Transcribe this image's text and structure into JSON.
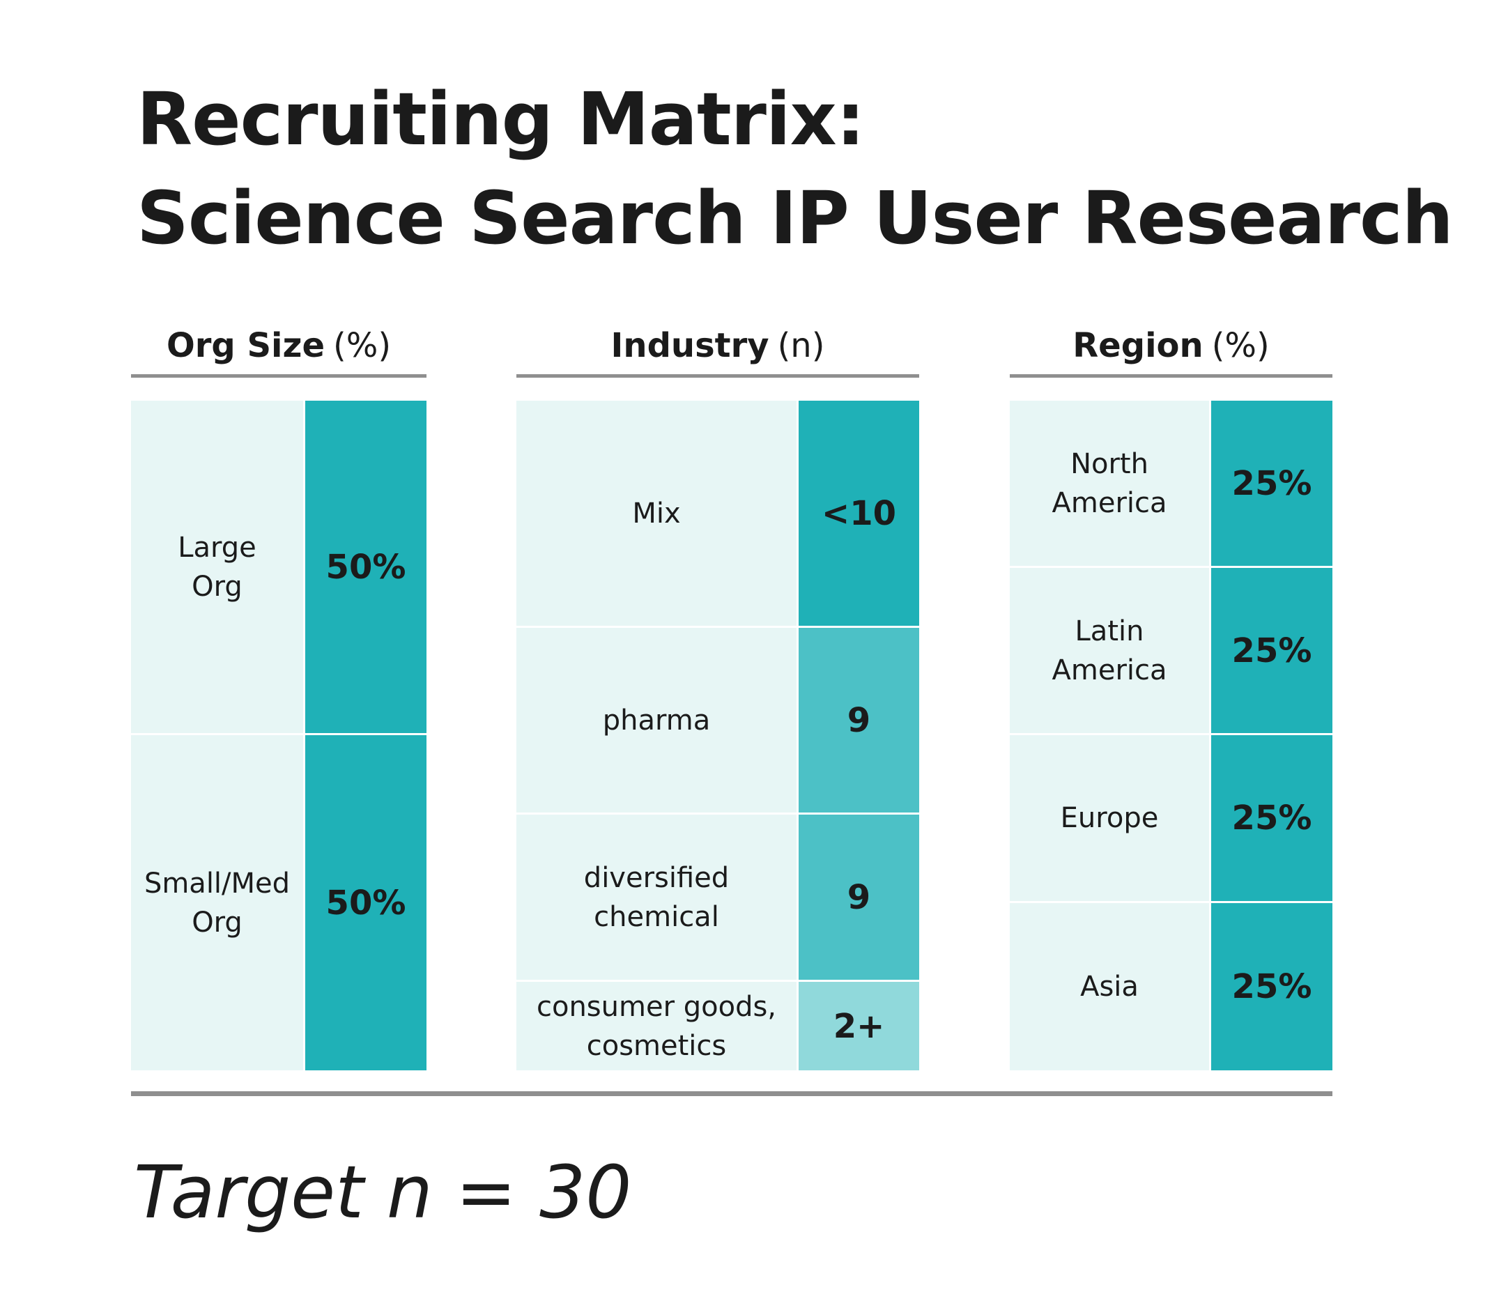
{
  "title": {
    "line1": "Recruiting Matrix:",
    "line2": "Science Search IP User Research"
  },
  "org_size": {
    "header_bold": "Org Size",
    "header_unit": "(%)",
    "rows": [
      {
        "label": "Large\nOrg",
        "value": "50%"
      },
      {
        "label": "Small/Med\nOrg",
        "value": "50%"
      }
    ]
  },
  "industry": {
    "header_bold": "Industry",
    "header_unit": "(n)",
    "rows": [
      {
        "label": "Mix",
        "value": "<10"
      },
      {
        "label": "pharma",
        "value": "9"
      },
      {
        "label": "diversified\nchemical",
        "value": "9"
      },
      {
        "label": "consumer goods,\ncosmetics",
        "value": "2+"
      }
    ]
  },
  "region": {
    "header_bold": "Region",
    "header_unit": "(%)",
    "rows": [
      {
        "label": "North\nAmerica",
        "value": "25%"
      },
      {
        "label": "Latin\nAmerica",
        "value": "25%"
      },
      {
        "label": "Europe",
        "value": "25%"
      },
      {
        "label": "Asia",
        "value": "25%"
      }
    ]
  },
  "footer": {
    "target": "Target n = 30"
  },
  "colors": {
    "dark": "#1fb1b7",
    "mid": "#4cc1c6",
    "light": "#90d9db",
    "label_bg": "#e7f6f5"
  }
}
